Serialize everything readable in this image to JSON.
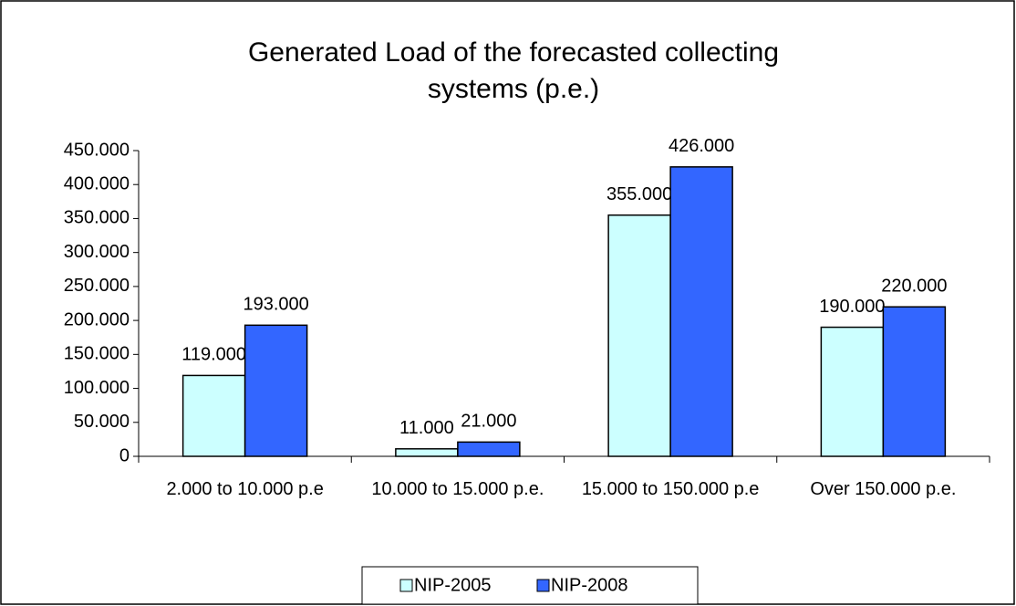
{
  "chart_data": {
    "type": "bar",
    "title": "Generated Load of the forecasted collecting systems (p.e.)",
    "categories": [
      "2.000 to 10.000 p.e",
      "10.000 to 15.000 p.e.",
      "15.000 to 150.000 p.e",
      "Over 150.000 p.e."
    ],
    "series": [
      {
        "name": "NIP-2005",
        "color": "#ccffff",
        "values": [
          119000,
          11000,
          355000,
          190000
        ],
        "value_labels": [
          "119.000",
          "11.000",
          "355.000",
          "190.000"
        ]
      },
      {
        "name": "NIP-2008",
        "color": "#3366ff",
        "values": [
          193000,
          21000,
          426000,
          220000
        ],
        "value_labels": [
          "193.000",
          "21.000",
          "426.000",
          "220.000"
        ]
      }
    ],
    "ylim": [
      0,
      450000
    ],
    "yticks": [
      0,
      {
        "value": 50000,
        "label": "50.000"
      },
      {
        "value": 100000,
        "label": "100.000"
      },
      {
        "value": 150000,
        "label": "150.000"
      },
      {
        "value": 200000,
        "label": "200.000"
      },
      {
        "value": 250000,
        "label": "250.000"
      },
      {
        "value": 300000,
        "label": "300.000"
      },
      {
        "value": 350000,
        "label": "350.000"
      },
      {
        "value": 400000,
        "label": "400.000"
      },
      {
        "value": 450000,
        "label": "450.000"
      }
    ],
    "legend": "bottom"
  }
}
